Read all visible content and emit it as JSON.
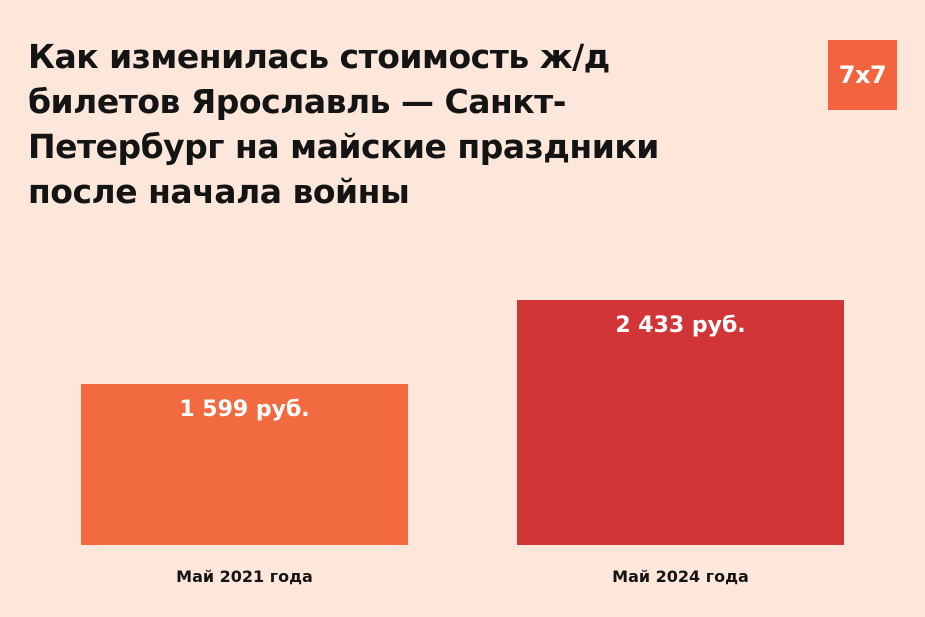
{
  "header": {
    "title": "Как изменилась стоимость ж/д билетов Ярославль — Санкт-Петербург на майские праздники после начала войны",
    "logo_text": "7x7"
  },
  "colors": {
    "background": "#fde6da",
    "logo": "#f26440",
    "bar_2021": "#f26a40",
    "bar_2024": "#d13537"
  },
  "chart_data": {
    "type": "bar",
    "title": "Как изменилась стоимость ж/д билетов Ярославль — Санкт-Петербург на майские праздники после начала войны",
    "categories": [
      "Май 2021 года",
      "Май 2024 года"
    ],
    "values": [
      1599,
      2433
    ],
    "value_labels": [
      "1 599 руб.",
      "2 433 руб."
    ],
    "bar_colors": [
      "#f26a40",
      "#d13537"
    ],
    "xlabel": "",
    "ylabel": "",
    "ylim": [
      0,
      2433
    ],
    "grid": false,
    "legend": "none"
  }
}
